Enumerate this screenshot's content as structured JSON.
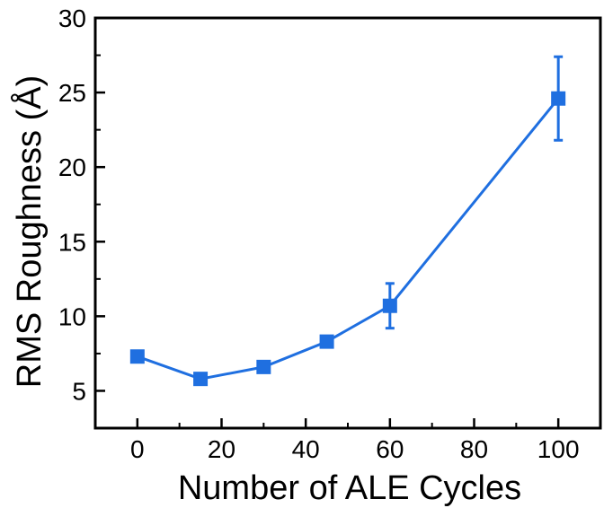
{
  "chart_data": {
    "type": "line",
    "xlabel": "Number of ALE Cycles",
    "ylabel": "RMS Roughness (Å)",
    "xlim": [
      -10,
      110
    ],
    "ylim": [
      2.5,
      30
    ],
    "x_ticks": [
      0,
      20,
      40,
      60,
      80,
      100
    ],
    "y_ticks": [
      5,
      10,
      15,
      20,
      25,
      30
    ],
    "x_tick_labels": [
      "0",
      "20",
      "40",
      "60",
      "80",
      "100"
    ],
    "y_tick_labels": [
      "5",
      "10",
      "15",
      "20",
      "25",
      "30"
    ],
    "grid": false,
    "series": [
      {
        "color": "#1f6fe0",
        "marker": "square",
        "points": [
          {
            "x": 0,
            "y": 7.3,
            "err": 0
          },
          {
            "x": 15,
            "y": 5.8,
            "err": 0
          },
          {
            "x": 30,
            "y": 6.6,
            "err": 0
          },
          {
            "x": 45,
            "y": 8.3,
            "err": 0
          },
          {
            "x": 60,
            "y": 10.7,
            "err": 1.5
          },
          {
            "x": 100,
            "y": 24.6,
            "err": 2.8
          }
        ]
      }
    ]
  }
}
